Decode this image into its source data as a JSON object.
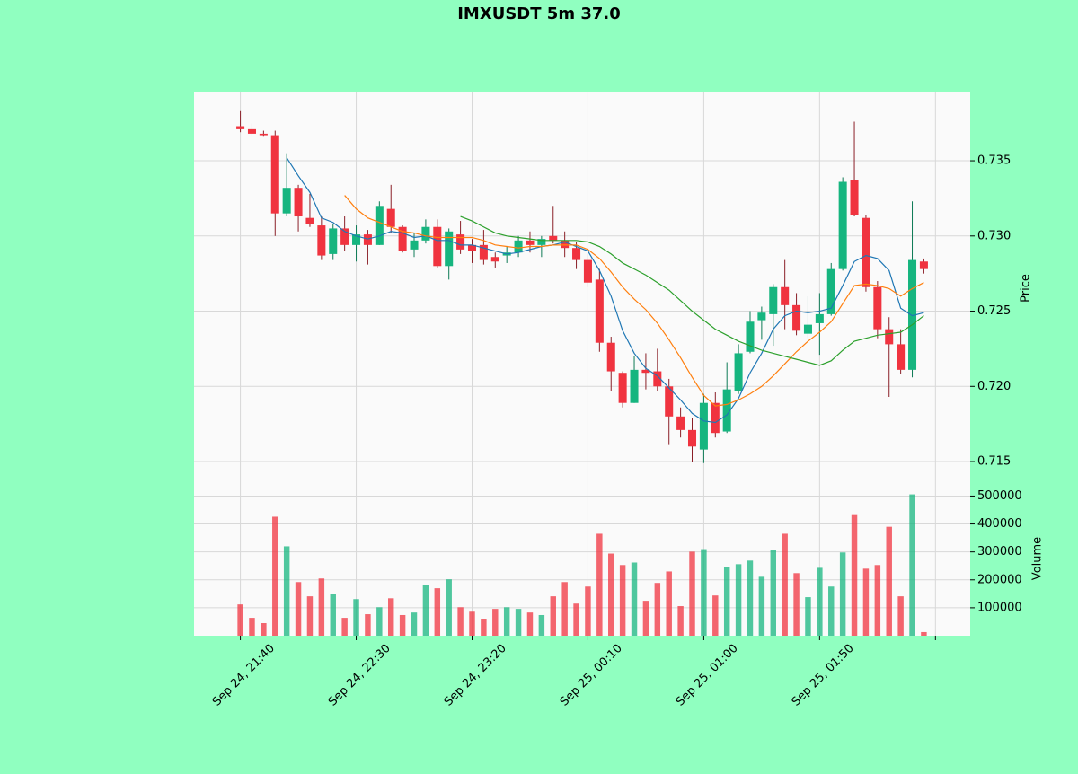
{
  "chart_data": {
    "type": "candlestick",
    "title": "IMXUSDT 5m 37.0",
    "ylabel": "Price",
    "volume_ylabel": "Volume",
    "xlim": [
      -4,
      63
    ],
    "xticks": [
      {
        "value": 0,
        "label": "Sep 24, 21:40"
      },
      {
        "value": 10,
        "label": "Sep 24, 22:30"
      },
      {
        "value": 20,
        "label": "Sep 24, 23:20"
      },
      {
        "value": 30,
        "label": "Sep 25, 00:10"
      },
      {
        "value": 40,
        "label": "Sep 25, 01:00"
      },
      {
        "value": 50,
        "label": "Sep 25, 01:50"
      },
      {
        "value": 60,
        "label": null
      }
    ],
    "ylim": [
      0.71345,
      0.7396
    ],
    "yticks": [
      0.715,
      {
        "value": 0.72,
        "label": "0.720"
      },
      0.725,
      {
        "value": 0.73,
        "label": "0.730"
      },
      0.735
    ],
    "volume_ylim": [
      0,
      540000
    ],
    "volume_yticks": [
      100000,
      200000,
      300000,
      400000,
      500000
    ],
    "grid": true,
    "up_color": "#16b57f",
    "down_color": "#f0333f",
    "open": [
      0.7373,
      0.7371,
      0.7368,
      0.7367,
      0.7315,
      0.7332,
      0.7312,
      0.7307,
      0.7288,
      0.7305,
      0.7294,
      0.7301,
      0.7294,
      0.7318,
      0.7306,
      0.7291,
      0.7297,
      0.7306,
      0.728,
      0.7301,
      0.7294,
      0.7294,
      0.7286,
      0.7287,
      0.7289,
      0.7297,
      0.7294,
      0.73,
      0.7297,
      0.7292,
      0.7284,
      0.7271,
      0.7229,
      0.7209,
      0.7189,
      0.7211,
      0.721,
      0.72,
      0.718,
      0.7171,
      0.7158,
      0.7189,
      0.717,
      0.7197,
      0.7223,
      0.7244,
      0.7248,
      0.7266,
      0.7254,
      0.7235,
      0.7242,
      0.7248,
      0.7278,
      0.7337,
      0.7312,
      0.7266,
      0.7238,
      0.7228,
      0.7211,
      0.7283
    ],
    "high": [
      0.7383,
      0.7375,
      0.737,
      0.737,
      0.7355,
      0.7334,
      0.7328,
      0.7313,
      0.7308,
      0.7313,
      0.7307,
      0.7304,
      0.7323,
      0.7334,
      0.7307,
      0.7302,
      0.7311,
      0.7311,
      0.7305,
      0.731,
      0.7298,
      0.7304,
      0.7289,
      0.7293,
      0.73,
      0.7303,
      0.73,
      0.732,
      0.7303,
      0.7296,
      0.7288,
      0.7278,
      0.7233,
      0.721,
      0.722,
      0.7222,
      0.7225,
      0.7205,
      0.7186,
      0.7179,
      0.7195,
      0.7196,
      0.7216,
      0.7228,
      0.725,
      0.7253,
      0.7268,
      0.7284,
      0.7262,
      0.726,
      0.7262,
      0.7282,
      0.7339,
      0.7376,
      0.7314,
      0.727,
      0.7246,
      0.7238,
      0.7323,
      0.7285
    ],
    "low": [
      0.7369,
      0.7367,
      0.7366,
      0.73,
      0.7313,
      0.7303,
      0.7306,
      0.7284,
      0.7284,
      0.729,
      0.7283,
      0.7281,
      0.7294,
      0.7302,
      0.7289,
      0.7286,
      0.7295,
      0.7279,
      0.7271,
      0.7288,
      0.7282,
      0.7281,
      0.7279,
      0.7282,
      0.7286,
      0.7289,
      0.7286,
      0.7295,
      0.7286,
      0.7278,
      0.7266,
      0.7223,
      0.7197,
      0.7186,
      0.7189,
      0.7198,
      0.7197,
      0.7161,
      0.7166,
      0.715,
      0.7149,
      0.7166,
      0.7169,
      0.7195,
      0.7222,
      0.7231,
      0.7227,
      0.7238,
      0.7234,
      0.7232,
      0.7221,
      0.7247,
      0.7277,
      0.7313,
      0.7263,
      0.7232,
      0.7193,
      0.7208,
      0.7206,
      0.7275
    ],
    "close": [
      0.7371,
      0.7368,
      0.7367,
      0.7315,
      0.7332,
      0.7313,
      0.7308,
      0.7287,
      0.7305,
      0.7294,
      0.7301,
      0.7294,
      0.732,
      0.7306,
      0.729,
      0.7297,
      0.7306,
      0.728,
      0.7303,
      0.7291,
      0.729,
      0.7284,
      0.7283,
      0.7289,
      0.7297,
      0.7294,
      0.7298,
      0.7297,
      0.7292,
      0.7284,
      0.7269,
      0.7229,
      0.721,
      0.7189,
      0.7211,
      0.7209,
      0.72,
      0.718,
      0.7171,
      0.716,
      0.7189,
      0.7169,
      0.7198,
      0.7222,
      0.7243,
      0.7249,
      0.7266,
      0.7254,
      0.7237,
      0.7241,
      0.7248,
      0.7278,
      0.7336,
      0.7314,
      0.7266,
      0.7238,
      0.7228,
      0.7211,
      0.7284,
      0.7278
    ],
    "volume": [
      112000,
      64000,
      45000,
      426000,
      320000,
      192000,
      141000,
      205000,
      150000,
      64000,
      131000,
      77000,
      102000,
      134000,
      74000,
      83000,
      182000,
      170000,
      202000,
      102000,
      86000,
      61000,
      96000,
      102000,
      96000,
      83000,
      74000,
      141000,
      192000,
      115000,
      176000,
      365000,
      294000,
      253000,
      262000,
      125000,
      189000,
      230000,
      106000,
      301000,
      310000,
      144000,
      246000,
      256000,
      269000,
      211000,
      307000,
      365000,
      224000,
      138000,
      243000,
      176000,
      298000,
      435000,
      240000,
      253000,
      390000,
      141000,
      506000,
      13000
    ],
    "moving_averages": [
      {
        "color": "#1f77b4",
        "values": [
          null,
          null,
          null,
          null,
          0.7352,
          0.734,
          0.7329,
          0.7312,
          0.7309,
          0.7303,
          0.73,
          0.7298,
          0.73,
          0.7303,
          0.7302,
          0.7299,
          0.73,
          0.7297,
          0.7297,
          0.7294,
          0.7294,
          0.7292,
          0.729,
          0.7288,
          0.7289,
          0.7291,
          0.7293,
          0.7294,
          0.7296,
          0.7293,
          0.729,
          0.7277,
          0.726,
          0.7237,
          0.7222,
          0.7212,
          0.7207,
          0.7199,
          0.7191,
          0.7182,
          0.7177,
          0.7176,
          0.7181,
          0.7192,
          0.7209,
          0.7222,
          0.7238,
          0.7247,
          0.725,
          0.7249,
          0.725,
          0.7252,
          0.7267,
          0.7283,
          0.7287,
          0.7285,
          0.7277,
          0.7252,
          0.7247,
          0.7249
        ]
      },
      {
        "color": "#ff7f0e",
        "values": [
          null,
          null,
          null,
          null,
          null,
          null,
          null,
          null,
          null,
          0.7327,
          0.7318,
          0.7312,
          0.7309,
          0.7306,
          0.7303,
          0.7302,
          0.73,
          0.7299,
          0.7299,
          0.7299,
          0.7299,
          0.7297,
          0.7294,
          0.7293,
          0.7292,
          0.7293,
          0.7293,
          0.7294,
          0.7294,
          0.7294,
          0.7291,
          0.7285,
          0.7276,
          0.7266,
          0.7258,
          0.7251,
          0.7242,
          0.7231,
          0.7219,
          0.7206,
          0.7194,
          0.7187,
          0.7188,
          0.7191,
          0.7195,
          0.72,
          0.7207,
          0.7215,
          0.7223,
          0.723,
          0.7236,
          0.7243,
          0.7255,
          0.7267,
          0.7268,
          0.7267,
          0.7265,
          0.726,
          0.7265,
          0.7269
        ]
      },
      {
        "color": "#2ca02c",
        "values": [
          null,
          null,
          null,
          null,
          null,
          null,
          null,
          null,
          null,
          null,
          null,
          null,
          null,
          null,
          null,
          null,
          null,
          null,
          null,
          0.7313,
          0.731,
          0.7306,
          0.7302,
          0.73,
          0.7299,
          0.7298,
          0.7297,
          0.7297,
          0.7297,
          0.7297,
          0.7296,
          0.7293,
          0.7288,
          0.7282,
          0.7278,
          0.7274,
          0.7269,
          0.7264,
          0.7257,
          0.725,
          0.7244,
          0.7238,
          0.7234,
          0.723,
          0.7227,
          0.7224,
          0.7222,
          0.722,
          0.7218,
          0.7216,
          0.7214,
          0.7217,
          0.7224,
          0.723,
          0.7232,
          0.7234,
          0.7235,
          0.7236,
          0.7241,
          0.7247
        ]
      }
    ]
  }
}
